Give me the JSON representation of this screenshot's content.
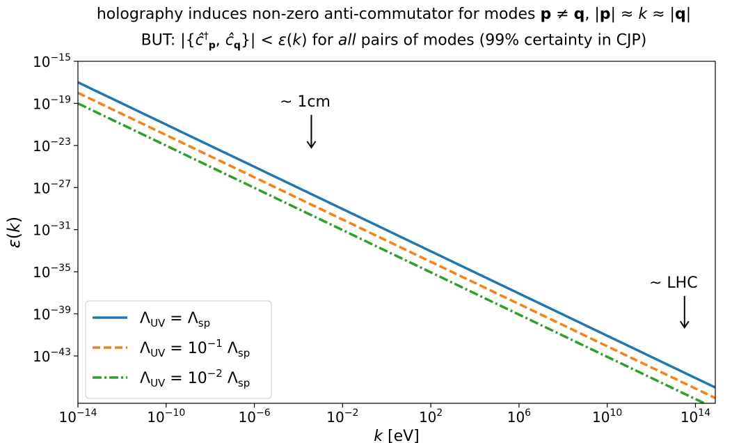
{
  "chart_data": {
    "type": "line",
    "title_line1": "holography induces non-zero anti-commutator for modes p ≠ q, |p| ≈ k ≈ |q|",
    "title_line2": "BUT:  |{ĉ†_p, ĉ_q}| < ε(k)  for all pairs of modes  (99% certainty in CJP)",
    "xlabel": "k [eV]",
    "ylabel": "ε(k)",
    "xscale": "log",
    "yscale": "log",
    "xlim_exp": [
      -14,
      14.9
    ],
    "ylim_exp": [
      -47.5,
      -15
    ],
    "x_ticks_exp": [
      -14,
      -10,
      -6,
      -2,
      2,
      6,
      10,
      14
    ],
    "y_ticks_exp": [
      -15,
      -19,
      -23,
      -27,
      -31,
      -35,
      -39,
      -43
    ],
    "series": [
      {
        "name": "Λ_UV = Λ_sp",
        "legend_base": "Λ",
        "legend_rhs": "Λ",
        "legend_sub": "UV",
        "legend_sub2": "sp",
        "legend_factor": "",
        "legend_exp": "",
        "color": "#1f77b4",
        "style": "solid",
        "x_exp": [
          -14,
          14.9
        ],
        "y_exp": [
          -17.0,
          -46.0
        ]
      },
      {
        "name": "Λ_UV = 10^-1 Λ_sp",
        "legend_base": "Λ",
        "legend_rhs": "Λ",
        "legend_sub": "UV",
        "legend_sub2": "sp",
        "legend_factor": "10",
        "legend_exp": "−1",
        "color": "#ff7f0e",
        "style": "dashed",
        "x_exp": [
          -14,
          14.9
        ],
        "y_exp": [
          -18.0,
          -47.0
        ]
      },
      {
        "name": "Λ_UV = 10^-2 Λ_sp",
        "legend_base": "Λ",
        "legend_rhs": "Λ",
        "legend_sub": "UV",
        "legend_sub2": "sp",
        "legend_factor": "10",
        "legend_exp": "−2",
        "color": "#2ca02c",
        "style": "dashdot",
        "x_exp": [
          -14,
          14.9
        ],
        "y_exp": [
          -19.0,
          -48.0
        ]
      }
    ],
    "annotations": [
      {
        "text": "~ 1cm",
        "x_exp": -3.7,
        "y_exp": -19.3,
        "arrow_to_y_exp": -23.2
      },
      {
        "text": "~ LHC",
        "x_exp": 13.0,
        "y_exp": -36.5,
        "arrow_to_y_exp": -40.3
      }
    ],
    "legend_placement": "lower-left",
    "grid": false
  }
}
